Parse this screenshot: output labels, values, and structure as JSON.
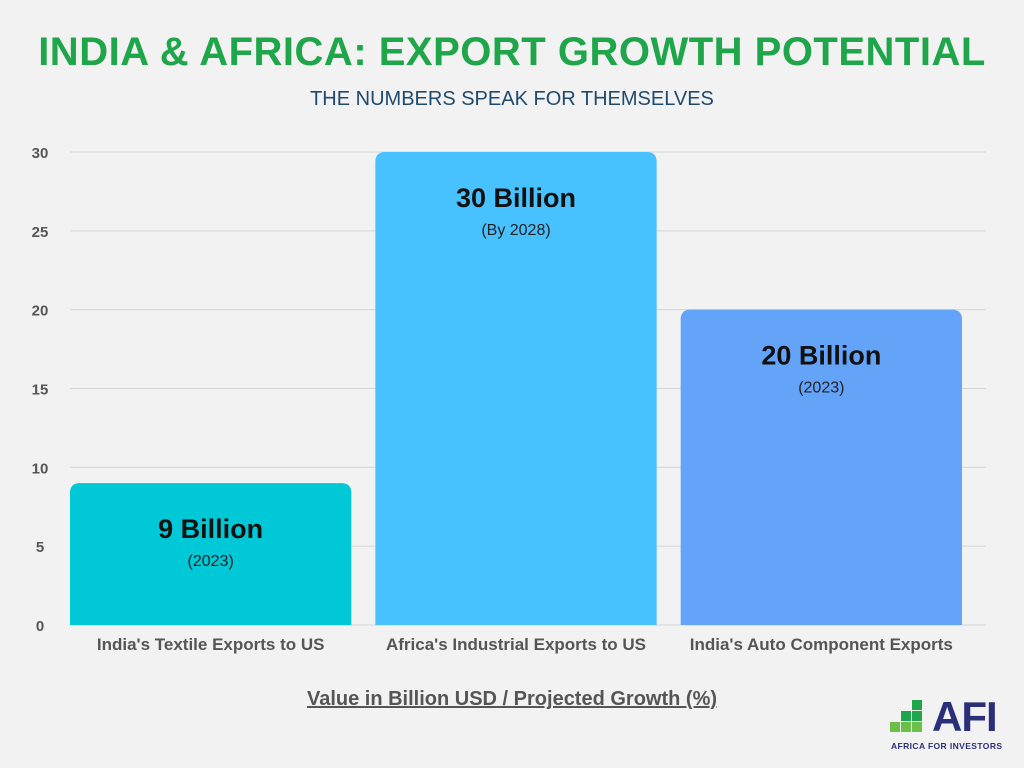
{
  "header": {
    "title": "INDIA & AFRICA: EXPORT GROWTH POTENTIAL",
    "subtitle": "THE NUMBERS SPEAK FOR THEMSELVES"
  },
  "chart_data": {
    "type": "bar",
    "categories": [
      "India's Textile Exports to US",
      "Africa's Industrial Exports to US",
      "India's Auto Component Exports"
    ],
    "values": [
      9,
      30,
      20
    ],
    "data_labels": [
      "9 Billion",
      "30 Billion",
      "20 Billion"
    ],
    "data_sublabels": [
      "(2023)",
      "(By 2028)",
      "(2023)"
    ],
    "colors": [
      "#00c8d7",
      "#48c1ff",
      "#63a3f8"
    ],
    "title": "INDIA & AFRICA: EXPORT GROWTH POTENTIAL",
    "xlabel": "Value in Billion USD / Projected Growth (%)",
    "ylabel": "",
    "ylim": [
      0,
      30
    ],
    "yticks": [
      0,
      5,
      10,
      15,
      20,
      25,
      30
    ],
    "grid": true,
    "legend": "none"
  },
  "logo": {
    "text": "AFI",
    "tagline": "AFRICA FOR INVESTORS",
    "colors": [
      "#6cc04a",
      "#1fa64a",
      "#2a2f7a"
    ]
  }
}
